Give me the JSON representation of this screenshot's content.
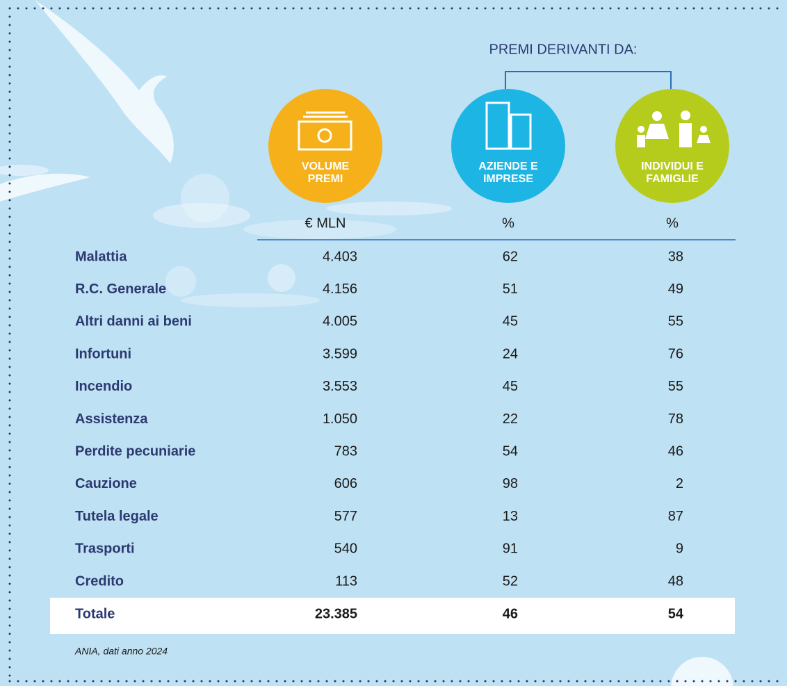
{
  "header": "PREMI DERIVANTI DA:",
  "columns": [
    {
      "label_lines": [
        "VOLUME",
        "PREMI"
      ],
      "unit": "€ MLN"
    },
    {
      "label_lines": [
        "AZIENDE E",
        "IMPRESE"
      ],
      "unit": "%"
    },
    {
      "label_lines": [
        "INDIVIDUI E",
        "FAMIGLIE"
      ],
      "unit": "%"
    }
  ],
  "rows": [
    [
      "Malattia",
      "4.403",
      "62",
      "38"
    ],
    [
      "R.C. Generale",
      "4.156",
      "51",
      "49"
    ],
    [
      "Altri danni ai beni",
      "4.005",
      "45",
      "55"
    ],
    [
      "Infortuni",
      "3.599",
      "24",
      "76"
    ],
    [
      "Incendio",
      "3.553",
      "45",
      "55"
    ],
    [
      "Assistenza",
      "1.050",
      "22",
      "78"
    ],
    [
      "Perdite pecuniarie",
      "783",
      "54",
      "46"
    ],
    [
      "Cauzione",
      "606",
      "98",
      "2"
    ],
    [
      "Tutela legale",
      "577",
      "13",
      "87"
    ],
    [
      "Trasporti",
      "540",
      "91",
      "9"
    ],
    [
      "Credito",
      "113",
      "52",
      "48"
    ]
  ],
  "total": [
    "Totale",
    "23.385",
    "46",
    "54"
  ],
  "source": "ANIA, dati anno 2024"
}
